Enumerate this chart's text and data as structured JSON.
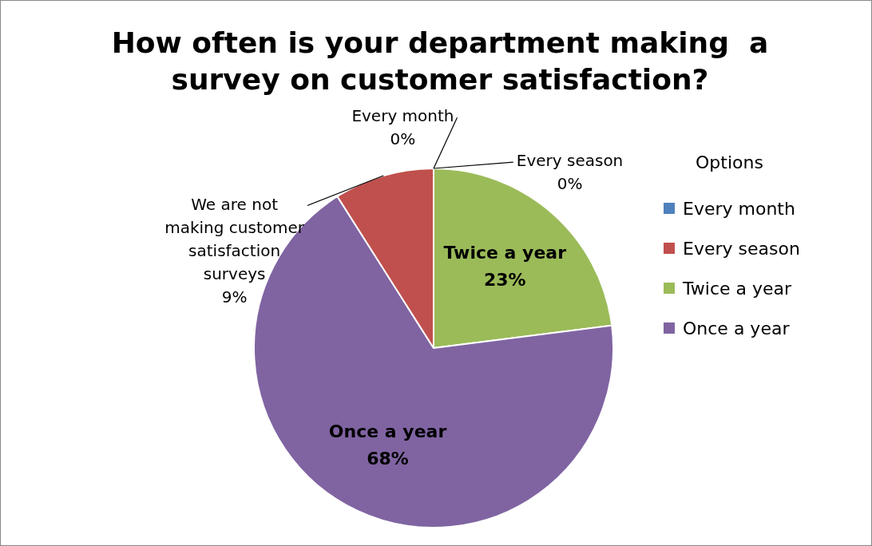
{
  "chart_data": {
    "type": "pie",
    "title": "How often is your department making  a survey on customer satisfaction?",
    "legend_title": "Options",
    "legend": "right",
    "categories": [
      "Every month",
      "Every season",
      "Twice a year",
      "Once a year",
      "We are not making customer satisfaction surveys"
    ],
    "values": [
      0,
      0,
      23,
      68,
      9
    ],
    "colors": [
      "#4f81bd",
      "#c0504d",
      "#9bbb59",
      "#8064a2",
      "#c0504d"
    ],
    "value_labels": [
      "0%",
      "0%",
      "23%",
      "68%",
      "9%"
    ]
  }
}
